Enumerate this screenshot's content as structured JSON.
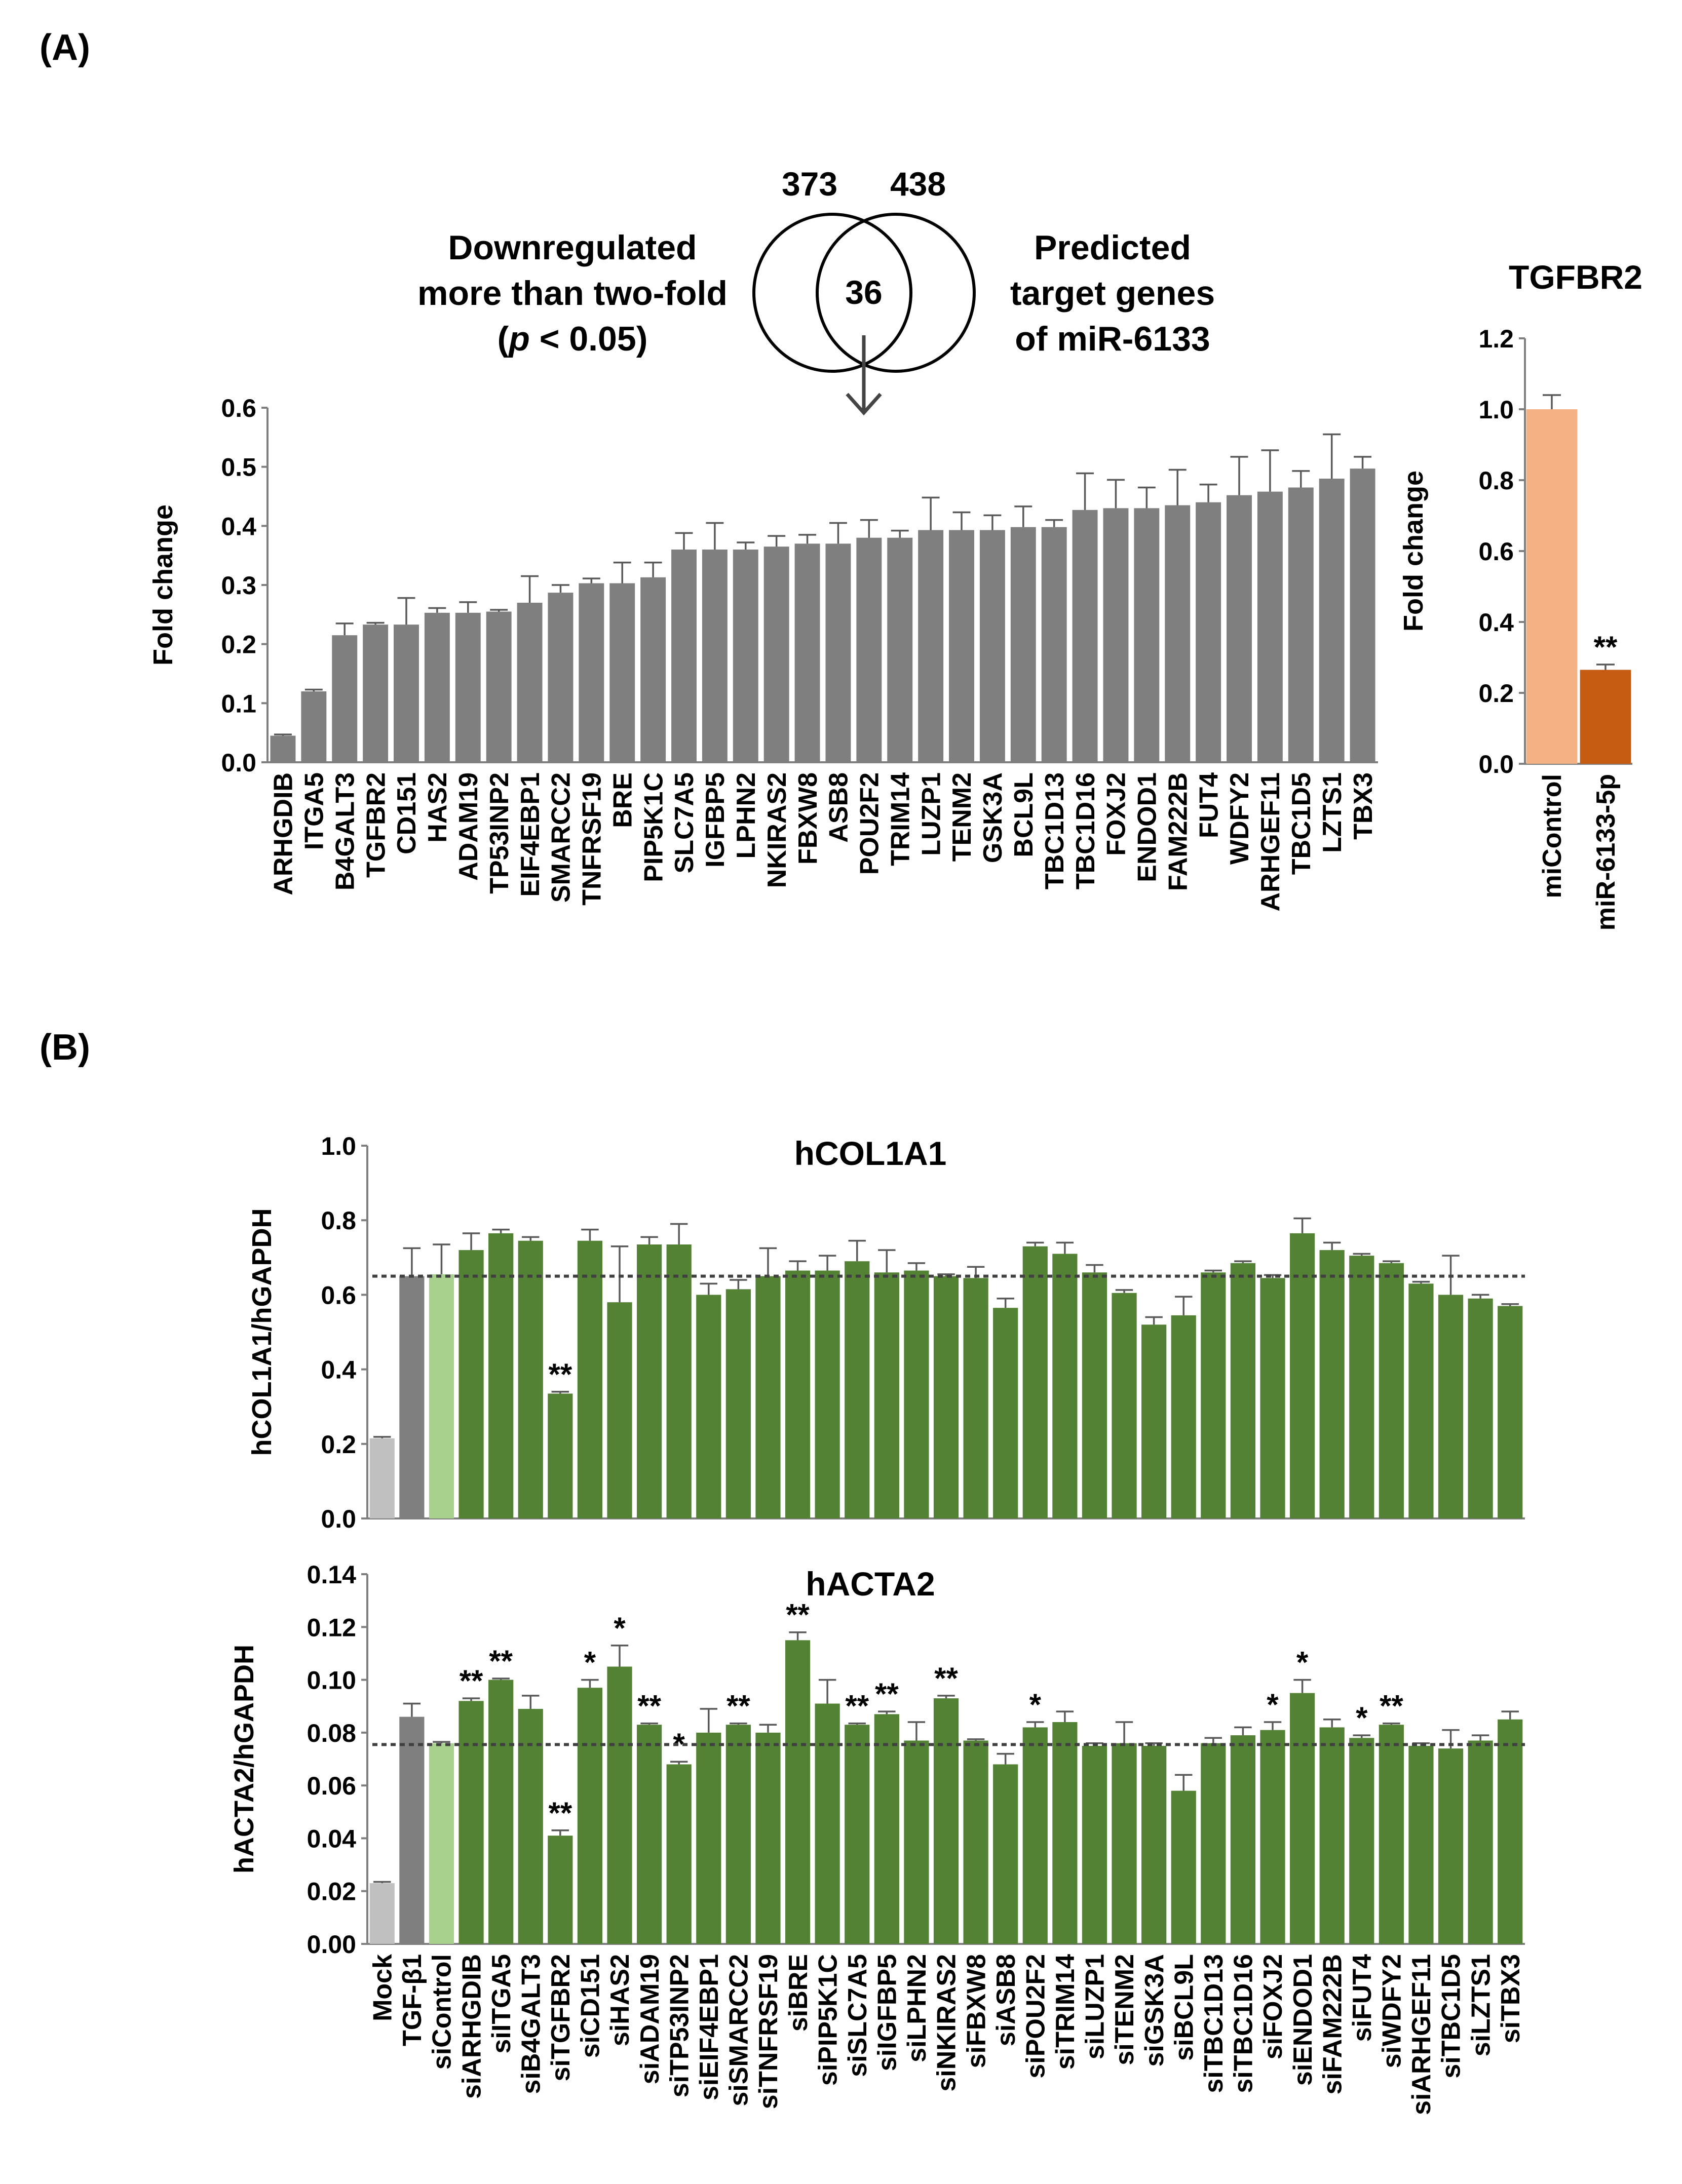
{
  "panel_a_label": "(A)",
  "panel_b_label": "(B)",
  "venn": {
    "left_count": "373",
    "right_count": "438",
    "overlap": "36",
    "left_label": [
      "Downregulated",
      "more than two-fold",
      "(p < 0.05)"
    ],
    "right_label": [
      "Predicted",
      "target genes",
      "of miR-6133"
    ]
  },
  "colors": {
    "gray_bar": "#7f7f7f",
    "light_gray": "#c0c0c0",
    "light_green": "#a9d18e",
    "dark_green": "#548235",
    "light_orange": "#f4b183",
    "dark_orange": "#c55a11"
  },
  "chart_data": [
    {
      "id": "a_main",
      "type": "bar",
      "title": "",
      "ylabel": "Fold change",
      "ylim": [
        0,
        0.6
      ],
      "yticks": [
        "0.0",
        "0.1",
        "0.2",
        "0.3",
        "0.4",
        "0.5",
        "0.6"
      ],
      "categories": [
        "ARHGDIB",
        "ITGA5",
        "B4GALT3",
        "TGFBR2",
        "CD151",
        "HAS2",
        "ADAM19",
        "TP53INP2",
        "EIF4EBP1",
        "SMARCC2",
        "TNFRSF19",
        "BRE",
        "PIP5K1C",
        "SLC7A5",
        "IGFBP5",
        "LPHN2",
        "NKIRAS2",
        "FBXW8",
        "ASB8",
        "POU2F2",
        "TRIM14",
        "LUZP1",
        "TENM2",
        "GSK3A",
        "BCL9L",
        "TBC1D13",
        "TBC1D16",
        "FOXJ2",
        "ENDOD1",
        "FAM222B",
        "FUT4",
        "WDFY2",
        "ARHGEF11",
        "TBC1D5",
        "LZTS1",
        "TBX3"
      ],
      "values": [
        0.045,
        0.12,
        0.215,
        0.233,
        0.233,
        0.253,
        0.253,
        0.255,
        0.27,
        0.287,
        0.303,
        0.303,
        0.313,
        0.36,
        0.36,
        0.36,
        0.365,
        0.37,
        0.37,
        0.38,
        0.38,
        0.393,
        0.393,
        0.393,
        0.398,
        0.398,
        0.427,
        0.43,
        0.43,
        0.435,
        0.44,
        0.452,
        0.458,
        0.465,
        0.48,
        0.497
      ],
      "errors": [
        0.002,
        0.003,
        0.02,
        0.003,
        0.045,
        0.008,
        0.018,
        0.003,
        0.045,
        0.013,
        0.008,
        0.035,
        0.025,
        0.028,
        0.045,
        0.012,
        0.018,
        0.015,
        0.035,
        0.03,
        0.012,
        0.055,
        0.03,
        0.025,
        0.035,
        0.012,
        0.062,
        0.048,
        0.035,
        0.06,
        0.03,
        0.065,
        0.07,
        0.028,
        0.075,
        0.02
      ],
      "annotations": [
        "",
        "",
        "",
        "",
        "",
        "",
        "",
        "",
        "",
        "",
        "",
        "",
        "",
        "",
        "",
        "",
        "",
        "",
        "",
        "",
        "",
        "",
        "",
        "",
        "",
        "",
        "",
        "",
        "",
        "",
        "",
        "",
        "",
        "",
        "",
        ""
      ]
    },
    {
      "id": "a_tgfbr2",
      "type": "bar",
      "title": "TGFBR2",
      "ylabel": "Fold change",
      "ylim": [
        0,
        1.2
      ],
      "yticks": [
        "0.0",
        "0.2",
        "0.4",
        "0.6",
        "0.8",
        "1.0",
        "1.2"
      ],
      "categories": [
        "miControl",
        "miR-6133-5p"
      ],
      "values": [
        1.0,
        0.265
      ],
      "errors": [
        0.04,
        0.015
      ],
      "annotations": [
        "",
        "**"
      ]
    },
    {
      "id": "b_col1a1",
      "type": "bar",
      "title": "hCOL1A1",
      "ylabel": "hCOL1A1/hGAPDH",
      "ylim": [
        0,
        1.0
      ],
      "yticks": [
        "0.0",
        "0.2",
        "0.4",
        "0.6",
        "0.8",
        "1.0"
      ],
      "reference_line": 0.65,
      "categories": [
        "Mock",
        "TGF-β1",
        "siControl",
        "siARHGDIB",
        "siITGA5",
        "siB4GALT3",
        "siTGFBR2",
        "siCD151",
        "siHAS2",
        "siADAM19",
        "siTP53INP2",
        "siEIF4EBP1",
        "siSMARCC2",
        "siTNFRSF19",
        "siBRE",
        "siPIP5K1C",
        "siSLC7A5",
        "siIGFBP5",
        "siLPHN2",
        "siNKIRAS2",
        "siFBXW8",
        "siASB8",
        "siPOU2F2",
        "siTRIM14",
        "siLUZP1",
        "siTENM2",
        "siGSK3A",
        "siBCL9L",
        "siTBC1D13",
        "siTBC1D16",
        "siFOXJ2",
        "siENDOD1",
        "siFAM222B",
        "siFUT4",
        "siWDFY2",
        "siARHGEF11",
        "siTBC1D5",
        "siLZTS1",
        "siTBX3"
      ],
      "values": [
        0.215,
        0.65,
        0.655,
        0.72,
        0.765,
        0.745,
        0.335,
        0.745,
        0.58,
        0.735,
        0.735,
        0.6,
        0.615,
        0.65,
        0.665,
        0.665,
        0.69,
        0.66,
        0.665,
        0.65,
        0.645,
        0.565,
        0.73,
        0.71,
        0.66,
        0.605,
        0.52,
        0.545,
        0.66,
        0.685,
        0.645,
        0.765,
        0.72,
        0.705,
        0.685,
        0.63,
        0.6,
        0.59,
        0.57
      ],
      "errors": [
        0.004,
        0.075,
        0.08,
        0.045,
        0.01,
        0.01,
        0.005,
        0.03,
        0.15,
        0.02,
        0.055,
        0.03,
        0.025,
        0.075,
        0.025,
        0.04,
        0.055,
        0.06,
        0.02,
        0.005,
        0.03,
        0.025,
        0.01,
        0.03,
        0.02,
        0.008,
        0.02,
        0.05,
        0.005,
        0.005,
        0.008,
        0.04,
        0.02,
        0.005,
        0.005,
        0.005,
        0.105,
        0.01,
        0.005
      ],
      "annotations": [
        "",
        "",
        "",
        "",
        "",
        "",
        "**",
        "",
        "",
        "",
        "",
        "",
        "",
        "",
        "",
        "",
        "",
        "",
        "",
        "",
        "",
        "",
        "",
        "",
        "",
        "",
        "",
        "",
        "",
        "",
        "",
        "",
        "",
        "",
        "",
        "",
        "",
        "",
        ""
      ]
    },
    {
      "id": "b_acta2",
      "type": "bar",
      "title": "hACTA2",
      "ylabel": "hACTA2/hGAPDH",
      "ylim": [
        0,
        0.14
      ],
      "yticks": [
        "0.00",
        "0.02",
        "0.04",
        "0.06",
        "0.08",
        "0.10",
        "0.12",
        "0.14"
      ],
      "reference_line": 0.0755,
      "categories": [
        "Mock",
        "TGF-β1",
        "siControl",
        "siARHGDIB",
        "siITGA5",
        "siB4GALT3",
        "siTGFBR2",
        "siCD151",
        "siHAS2",
        "siADAM19",
        "siTP53INP2",
        "siEIF4EBP1",
        "siSMARCC2",
        "siTNFRSF19",
        "siBRE",
        "siPIP5K1C",
        "siSLC7A5",
        "siIGFBP5",
        "siLPHN2",
        "siNKIRAS2",
        "siFBXW8",
        "siASB8",
        "siPOU2F2",
        "siTRIM14",
        "siLUZP1",
        "siTENM2",
        "siGSK3A",
        "siBCL9L",
        "siTBC1D13",
        "siTBC1D16",
        "siFOXJ2",
        "siENDOD1",
        "siFAM222B",
        "siFUT4",
        "siWDFY2",
        "siARHGEF11",
        "siTBC1D5",
        "siLZTS1",
        "siTBX3"
      ],
      "values": [
        0.023,
        0.086,
        0.076,
        0.092,
        0.1,
        0.089,
        0.041,
        0.097,
        0.105,
        0.083,
        0.068,
        0.08,
        0.083,
        0.08,
        0.115,
        0.091,
        0.083,
        0.087,
        0.077,
        0.093,
        0.077,
        0.068,
        0.082,
        0.084,
        0.075,
        0.076,
        0.075,
        0.058,
        0.076,
        0.079,
        0.081,
        0.095,
        0.082,
        0.078,
        0.083,
        0.075,
        0.074,
        0.077,
        0.085
      ],
      "errors": [
        0.0005,
        0.005,
        0.0005,
        0.001,
        0.0005,
        0.005,
        0.002,
        0.003,
        0.008,
        0.0005,
        0.001,
        0.009,
        0.0005,
        0.003,
        0.003,
        0.009,
        0.0005,
        0.001,
        0.007,
        0.001,
        0.0005,
        0.004,
        0.002,
        0.004,
        0.001,
        0.008,
        0.001,
        0.006,
        0.002,
        0.003,
        0.003,
        0.005,
        0.003,
        0.001,
        0.0005,
        0.001,
        0.007,
        0.002,
        0.003
      ],
      "annotations": [
        "",
        "",
        "",
        "**",
        "**",
        "",
        "**",
        "*",
        "*",
        "**",
        "*",
        "",
        "**",
        "",
        "**",
        "",
        "**",
        "**",
        "",
        "**",
        "",
        "",
        "*",
        "",
        "",
        "",
        "",
        "",
        "",
        "",
        "*",
        "*",
        "",
        "*",
        "**",
        "",
        "",
        "",
        ""
      ]
    }
  ]
}
